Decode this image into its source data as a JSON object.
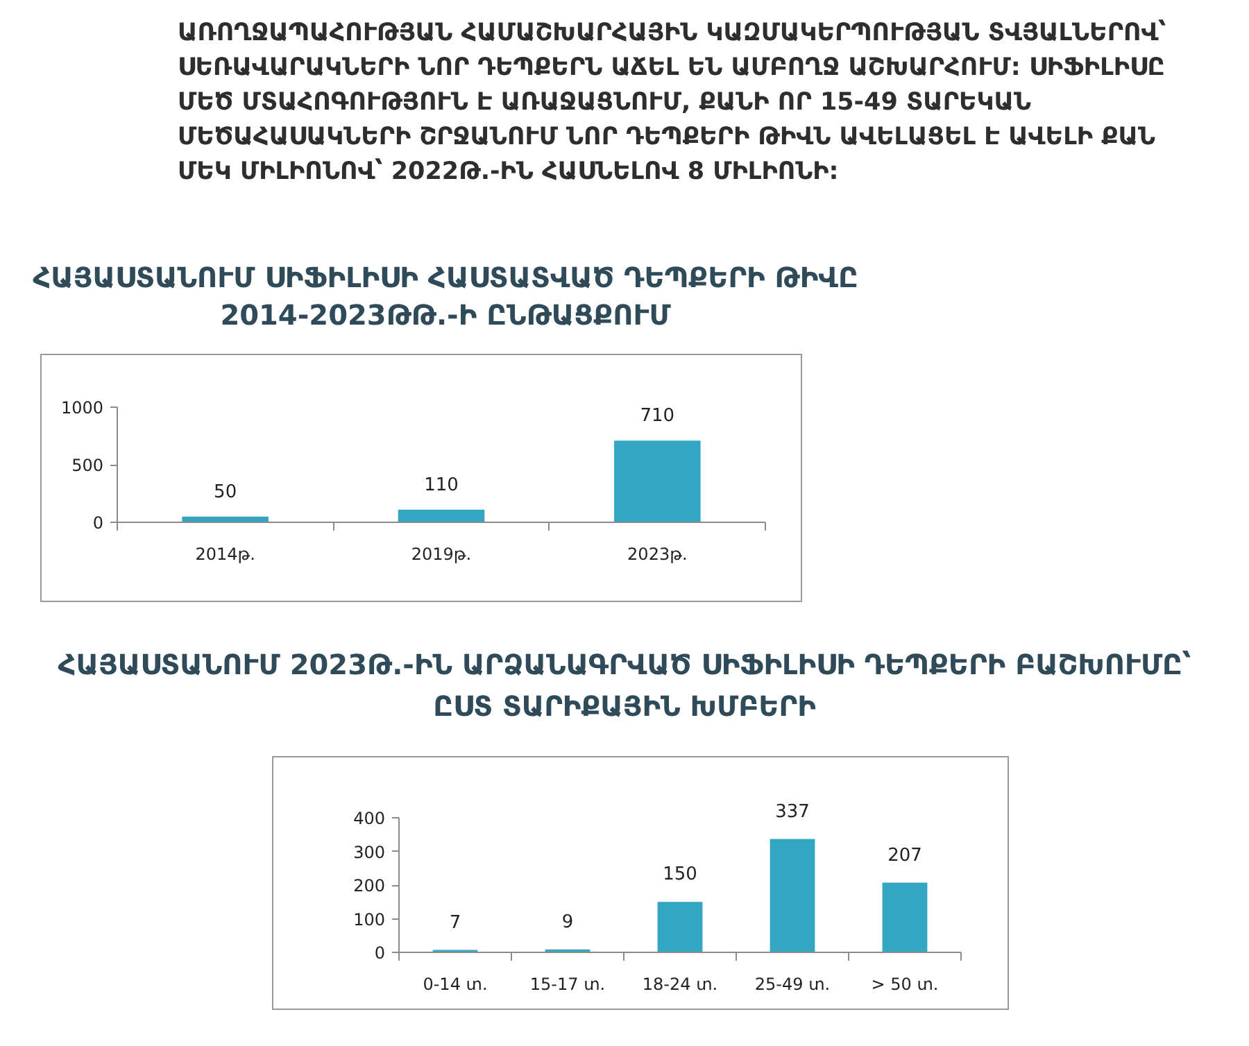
{
  "chart_data": [
    {
      "type": "bar",
      "title": "ՀԱՅԱՍՏԱՆՈՒՄ ՍԻՖԻԼԻՍԻ ՀԱՍՏԱՏՎԱԾ ԴԵՊՔԵՐԻ ԹԻՎԸ 2014-2023ԹԹ.-Ի ԸՆԹԱՑՔՈՒՄ",
      "annotations": [
        "ԱՌՈՂՋԱՊԱՀՈՒԹՅԱՆ ՀԱՄԱՇԽԱՐՀԱՅԻՆ ԿԱԶՄԱԿԵՐՊՈՒԹՅԱՆ ՏՎՅԱԼՆԵՐՈՎ՝ ՍԵՌԱՎԱՐԱԿՆԵՐԻ ՆՈՐ ԴԵՊՔԵՐՆ ԱՃԵԼ ԵՆ ԱՄԲՈՂՋ ԱՇԽԱՐՀՈՒՄ: ՍԻՖԻԼԻՍԸ ՄԵԾ ՄՏԱՀՈԳՈՒԹՅՈՒՆ Է ԱՌԱՋԱՑՆՈՒՄ, ՔԱՆԻ ՈՐ 15-49 ՏԱՐԵԿԱՆ ՄԵԾԱՀԱՍԱԿՆԵՐԻ ՇՐՋԱՆՈՒՄ ՆՈՐ ԴԵՊՔԵՐԻ ԹԻՎՆ ԱՎԵԼԱՑԵԼ Է ԱՎԵԼԻ ՔԱՆ ՄԵԿ ՄԻԼԻՈՆՈՎ՝ 2022Թ.-ԻՆ ՀԱՍՆԵԼՈՎ 8 ՄԻԼԻՈՆԻ:"
      ],
      "categories": [
        "2014թ.",
        "2019թ.",
        "2023թ."
      ],
      "values": [
        50,
        110,
        710
      ],
      "color": "#33a6c2",
      "ylim": [
        0,
        1000
      ],
      "yticks": [
        0,
        500,
        1000
      ],
      "data_labels": true,
      "grid": false
    },
    {
      "type": "bar",
      "title": "ՀԱՅԱՍՏԱՆՈՒՄ 2023Թ.-ԻՆ ԱՐՁԱՆԱԳՐՎԱԾ ՍԻՖԻԼԻՍԻ ԴԵՊՔԵՐԻ ԲԱՇԽՈՒՄԸ՝ ԸՍՏ ՏԱՐԻՔԱՅԻՆ ԽՄԲԵՐԻ",
      "categories": [
        "0-14 տ.",
        "15-17 տ.",
        "18-24 տ.",
        "25-49 տ.",
        "> 50 տ."
      ],
      "values": [
        7,
        9,
        150,
        337,
        207
      ],
      "color": "#33a6c2",
      "ylim": [
        0,
        400
      ],
      "yticks": [
        0,
        100,
        200,
        300,
        400
      ],
      "data_labels": true,
      "grid": false
    }
  ]
}
